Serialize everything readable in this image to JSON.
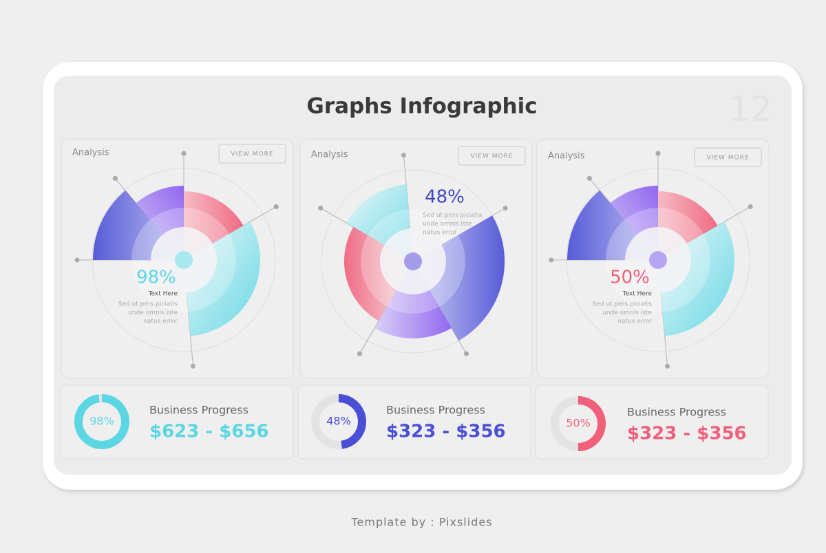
{
  "header": {
    "title": "Graphs Infographic",
    "page_number": "12"
  },
  "panels": [
    {
      "heading": "Analysis",
      "button": "VIEW MORE",
      "percent": "98%",
      "caption": "Text Here",
      "body": [
        "Sed ut pers piciatis",
        "unde omnis iste",
        "natus error"
      ],
      "color": "#5dd6e4"
    },
    {
      "heading": "Analysis",
      "button": "VIEW MORE",
      "percent": "48%",
      "body": [
        "Sed ut pers piciatis",
        "unde omnis iste",
        "natus error"
      ],
      "color": "#3f44c8"
    },
    {
      "heading": "Analysis",
      "button": "VIEW MORE",
      "percent": "50%",
      "caption": "Text Here",
      "body": [
        "Sed ut pers piciatis",
        "unde omnis iste",
        "natus error"
      ],
      "color": "#f0607a"
    }
  ],
  "progress_cards": [
    {
      "percent": {
        "value": 98,
        "label": "98%"
      },
      "label": "Business Progress",
      "range": "$623 - $656",
      "color": "#5dd6e4"
    },
    {
      "percent": {
        "value": 48,
        "label": "48%"
      },
      "label": "Business Progress",
      "range": "$323 - $356",
      "color": "#4a4fd6"
    },
    {
      "percent": {
        "value": 50,
        "label": "50%"
      },
      "label": "Business Progress",
      "range": "$323 - $356",
      "color": "#f0607a"
    }
  ],
  "footer": "Template by : Pixslides"
}
